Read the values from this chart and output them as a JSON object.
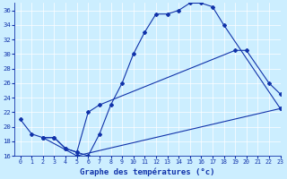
{
  "bg_color": "#cceeff",
  "line_color": "#1133aa",
  "xlim": [
    -0.5,
    23
  ],
  "ylim": [
    16,
    37
  ],
  "xticks": [
    0,
    1,
    2,
    3,
    4,
    5,
    6,
    7,
    8,
    9,
    10,
    11,
    12,
    13,
    14,
    15,
    16,
    17,
    18,
    19,
    20,
    21,
    22,
    23
  ],
  "yticks": [
    16,
    18,
    20,
    22,
    24,
    26,
    28,
    30,
    32,
    34,
    36
  ],
  "line1_x": [
    0,
    1,
    2,
    3,
    4,
    5,
    6,
    7,
    8,
    9,
    10,
    11,
    12,
    13,
    14,
    15,
    16,
    17,
    18,
    23
  ],
  "line1_y": [
    21,
    19,
    18.5,
    18.5,
    17,
    16.5,
    16,
    19,
    23,
    26,
    30,
    33,
    35.5,
    35.5,
    36,
    37,
    37,
    36.5,
    34,
    22.5
  ],
  "line2_x": [
    2,
    3,
    4,
    5,
    6,
    7,
    19,
    20,
    22,
    23
  ],
  "line2_y": [
    18.5,
    18.5,
    17,
    16.5,
    22,
    23,
    30.5,
    30.5,
    26,
    24.5
  ],
  "line3_x": [
    2,
    5,
    23
  ],
  "line3_y": [
    18.5,
    16,
    22.5
  ],
  "xlabel": "Graphe des températures (°c)"
}
